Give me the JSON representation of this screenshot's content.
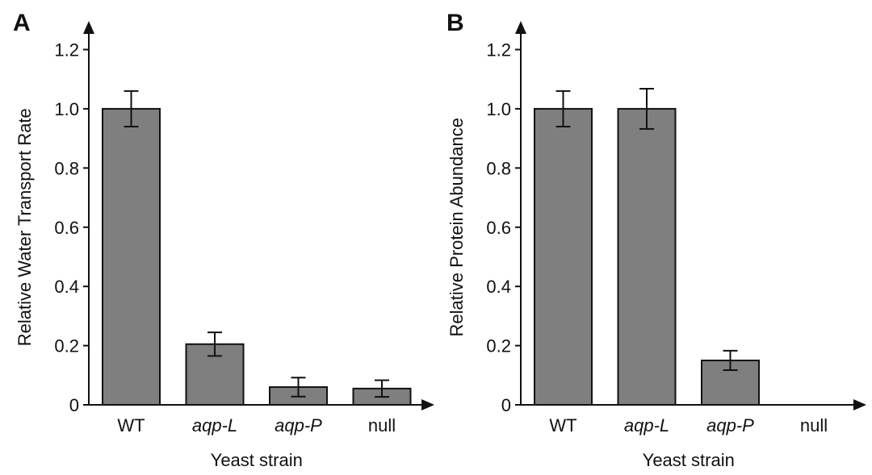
{
  "colors": {
    "bar_fill": "#7f7f7f",
    "bar_stroke": "#111111",
    "axis": "#111111"
  },
  "chart_data": [
    {
      "type": "bar",
      "panel": "A",
      "categories": [
        "WT",
        "aqp-L",
        "aqp-P",
        "null"
      ],
      "categories_italic": [
        false,
        true,
        true,
        false
      ],
      "values": [
        1.0,
        0.205,
        0.06,
        0.055
      ],
      "errors": [
        0.06,
        0.04,
        0.032,
        0.028
      ],
      "xlabel": "Yeast strain",
      "ylabel": "Relative Water Transport Rate",
      "ylim": [
        0,
        1.2
      ],
      "yticks": [
        0,
        0.2,
        0.4,
        0.6,
        0.8,
        1.0,
        1.2
      ],
      "ytick_labels": [
        "0",
        "0.2",
        "0.4",
        "0.6",
        "0.8",
        "1.0",
        "1.2"
      ],
      "grid": false,
      "legend": "none"
    },
    {
      "type": "bar",
      "panel": "B",
      "categories": [
        "WT",
        "aqp-L",
        "aqp-P",
        "null"
      ],
      "categories_italic": [
        false,
        true,
        true,
        false
      ],
      "values": [
        1.0,
        1.0,
        0.15,
        null
      ],
      "errors": [
        0.06,
        0.068,
        0.033,
        null
      ],
      "xlabel": "Yeast strain",
      "ylabel": "Relative Protein Abundance",
      "ylim": [
        0,
        1.2
      ],
      "yticks": [
        0,
        0.2,
        0.4,
        0.6,
        0.8,
        1.0,
        1.2
      ],
      "ytick_labels": [
        "0",
        "0.2",
        "0.4",
        "0.6",
        "0.8",
        "1.0",
        "1.2"
      ],
      "grid": false,
      "legend": "none"
    }
  ]
}
